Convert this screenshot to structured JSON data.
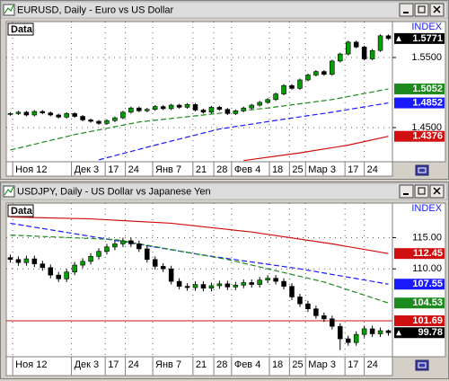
{
  "chart_data": [
    {
      "type": "candlestick",
      "title": "EURUSD, Daily - Euro vs US Dollar",
      "legend_label": "Data",
      "index_label": "INDEX",
      "xlim": [
        -0.5,
        47.5
      ],
      "ylim": [
        1.4013,
        1.6013
      ],
      "xticks": [
        {
          "value": 0.3,
          "label": "Ноя 12"
        },
        {
          "value": 7.6,
          "label": "Дек 3"
        },
        {
          "value": 11.8,
          "label": "17"
        },
        {
          "value": 14.3,
          "label": "24"
        },
        {
          "value": 17.7,
          "label": "Янв 7"
        },
        {
          "value": 22.7,
          "label": "21"
        },
        {
          "value": 25.3,
          "label": "28"
        },
        {
          "value": 27.5,
          "label": "Фев 4"
        },
        {
          "value": 32.2,
          "label": "18"
        },
        {
          "value": 34.7,
          "label": "25"
        },
        {
          "value": 36.7,
          "label": "Мар 3"
        },
        {
          "value": 41.6,
          "label": "17"
        },
        {
          "value": 44.0,
          "label": "24"
        }
      ],
      "yticks": [
        {
          "value": 1.55,
          "label": "1.5500"
        },
        {
          "value": 1.45,
          "label": "1.4500"
        }
      ],
      "up_color": "#00a000",
      "down_color": "#000000",
      "open": [
        1.469,
        1.47,
        1.472,
        1.468,
        1.473,
        1.471,
        1.468,
        1.465,
        1.47,
        1.466,
        1.461,
        1.459,
        1.456,
        1.46,
        1.464,
        1.472,
        1.478,
        1.474,
        1.476,
        1.48,
        1.477,
        1.482,
        1.479,
        1.483,
        1.475,
        1.472,
        1.479,
        1.476,
        1.47,
        1.474,
        1.478,
        1.482,
        1.486,
        1.49,
        1.498,
        1.51,
        1.506,
        1.518,
        1.525,
        1.53,
        1.526,
        1.545,
        1.555,
        1.572,
        1.565,
        1.548,
        1.56,
        1.581
      ],
      "high": [
        1.472,
        1.474,
        1.474,
        1.475,
        1.475,
        1.473,
        1.47,
        1.472,
        1.472,
        1.468,
        1.463,
        1.461,
        1.462,
        1.466,
        1.474,
        1.48,
        1.48,
        1.478,
        1.482,
        1.482,
        1.484,
        1.484,
        1.485,
        1.485,
        1.477,
        1.481,
        1.481,
        1.478,
        1.476,
        1.48,
        1.484,
        1.488,
        1.492,
        1.5,
        1.512,
        1.512,
        1.52,
        1.527,
        1.532,
        1.532,
        1.547,
        1.557,
        1.574,
        1.574,
        1.567,
        1.562,
        1.583,
        1.583
      ],
      "low": [
        1.467,
        1.468,
        1.466,
        1.466,
        1.469,
        1.466,
        1.463,
        1.463,
        1.464,
        1.459,
        1.457,
        1.454,
        1.454,
        1.458,
        1.462,
        1.47,
        1.472,
        1.472,
        1.474,
        1.475,
        1.475,
        1.477,
        1.477,
        1.473,
        1.47,
        1.47,
        1.474,
        1.468,
        1.468,
        1.472,
        1.476,
        1.48,
        1.484,
        1.488,
        1.496,
        1.504,
        1.504,
        1.516,
        1.523,
        1.524,
        1.524,
        1.543,
        1.553,
        1.563,
        1.546,
        1.546,
        1.558,
        1.5751
      ],
      "close": [
        1.47,
        1.472,
        1.468,
        1.473,
        1.471,
        1.468,
        1.465,
        1.47,
        1.466,
        1.461,
        1.459,
        1.456,
        1.46,
        1.464,
        1.472,
        1.478,
        1.474,
        1.476,
        1.48,
        1.477,
        1.482,
        1.479,
        1.483,
        1.475,
        1.472,
        1.479,
        1.476,
        1.47,
        1.474,
        1.478,
        1.482,
        1.486,
        1.49,
        1.498,
        1.51,
        1.506,
        1.518,
        1.525,
        1.53,
        1.526,
        1.545,
        1.555,
        1.572,
        1.565,
        1.548,
        1.56,
        1.581,
        1.5771
      ],
      "series": [
        {
          "color": "#1c8a1c",
          "dashed": true,
          "x": [
            0,
            8,
            16,
            24,
            32,
            40,
            47
          ],
          "values": [
            1.418,
            1.44,
            1.458,
            1.468,
            1.478,
            1.49,
            1.5052
          ]
        },
        {
          "color": "#1a1aff",
          "dashed": true,
          "x": [
            11,
            18,
            26,
            34,
            40,
            47
          ],
          "values": [
            1.404,
            1.425,
            1.448,
            1.462,
            1.472,
            1.4852
          ]
        },
        {
          "color": "#d01010",
          "dashed": false,
          "x": [
            29,
            36,
            42,
            47
          ],
          "values": [
            1.403,
            1.414,
            1.425,
            1.4376
          ]
        }
      ]
    },
    {
      "type": "candlestick",
      "title": "USDJPY, Daily - US Dollar vs Japanese Yen",
      "legend_label": "Data",
      "index_label": "INDEX",
      "xlim": [
        -0.5,
        47.5
      ],
      "ylim": [
        95.93,
        120.53
      ],
      "xticks": [
        {
          "value": 0.3,
          "label": "Ноя 12"
        },
        {
          "value": 7.6,
          "label": "Дек 3"
        },
        {
          "value": 11.8,
          "label": "17"
        },
        {
          "value": 14.3,
          "label": "24"
        },
        {
          "value": 17.7,
          "label": "Янв 7"
        },
        {
          "value": 22.7,
          "label": "21"
        },
        {
          "value": 25.3,
          "label": "28"
        },
        {
          "value": 27.5,
          "label": "Фев 4"
        },
        {
          "value": 32.2,
          "label": "18"
        },
        {
          "value": 34.7,
          "label": "25"
        },
        {
          "value": 36.7,
          "label": "Мар 3"
        },
        {
          "value": 41.6,
          "label": "17"
        },
        {
          "value": 44.0,
          "label": "24"
        }
      ],
      "yticks": [
        {
          "value": 115,
          "label": "115.00"
        },
        {
          "value": 110,
          "label": "110.00"
        }
      ],
      "up_color": "#00a000",
      "down_color": "#000000",
      "open": [
        111.8,
        111.5,
        111.0,
        111.6,
        110.8,
        110.2,
        109.0,
        108.4,
        109.5,
        110.6,
        111.2,
        112.0,
        112.8,
        113.5,
        114.0,
        114.5,
        114.0,
        113.2,
        111.5,
        110.4,
        110.0,
        108.0,
        107.2,
        107.0,
        107.5,
        106.9,
        107.3,
        107.6,
        107.1,
        107.4,
        107.8,
        107.5,
        108.2,
        108.5,
        108.0,
        107.2,
        105.5,
        104.4,
        103.6,
        102.5,
        102.0,
        100.8,
        98.8,
        98.2,
        99.5,
        100.4,
        99.6,
        100.1
      ],
      "high": [
        112.3,
        112.0,
        112.1,
        112.1,
        111.3,
        110.7,
        109.5,
        110.0,
        111.1,
        111.7,
        112.5,
        113.3,
        114.0,
        114.5,
        115.0,
        115.0,
        114.5,
        113.7,
        112.0,
        110.9,
        110.5,
        108.5,
        107.7,
        108.0,
        108.0,
        107.8,
        108.1,
        108.1,
        107.9,
        108.3,
        108.3,
        108.7,
        109.0,
        109.0,
        108.5,
        107.7,
        106.0,
        104.9,
        104.1,
        103.0,
        102.5,
        101.3,
        99.3,
        100.0,
        100.9,
        100.9,
        100.6,
        100.28
      ],
      "low": [
        111.0,
        110.5,
        110.5,
        110.3,
        109.7,
        108.5,
        107.9,
        107.9,
        109.0,
        110.1,
        110.7,
        111.5,
        112.3,
        113.0,
        113.5,
        113.5,
        112.7,
        111.0,
        109.9,
        109.5,
        107.5,
        106.7,
        106.5,
        106.5,
        106.4,
        106.4,
        106.8,
        106.6,
        106.6,
        106.9,
        107.0,
        107.0,
        107.7,
        107.5,
        106.7,
        105.0,
        103.9,
        103.1,
        102.0,
        101.5,
        100.3,
        97.0,
        97.7,
        97.7,
        99.0,
        99.1,
        99.1,
        99.28
      ],
      "close": [
        111.5,
        111.0,
        111.6,
        110.8,
        110.2,
        109.0,
        108.4,
        109.5,
        110.6,
        111.2,
        112.0,
        112.8,
        113.5,
        114.0,
        114.5,
        114.0,
        113.2,
        111.5,
        110.4,
        110.0,
        108.0,
        107.2,
        107.0,
        107.5,
        106.9,
        107.3,
        107.6,
        107.1,
        107.4,
        107.8,
        107.5,
        108.2,
        108.5,
        108.0,
        107.2,
        105.5,
        104.4,
        103.6,
        102.5,
        102.0,
        100.8,
        98.8,
        98.2,
        99.5,
        100.4,
        99.6,
        100.1,
        99.78
      ],
      "series": [
        {
          "color": "#d01010",
          "dashed": false,
          "x": [
            0,
            10,
            20,
            30,
            40,
            47
          ],
          "values": [
            118.3,
            118.0,
            117.3,
            115.9,
            114.0,
            112.45
          ]
        },
        {
          "color": "#1a1aff",
          "dashed": true,
          "x": [
            0,
            10,
            24,
            36,
            47
          ],
          "values": [
            117.3,
            115.2,
            112.2,
            110.0,
            107.55
          ]
        },
        {
          "color": "#1c8a1c",
          "dashed": true,
          "x": [
            0,
            13,
            27,
            39,
            47
          ],
          "values": [
            115.4,
            114.7,
            111.5,
            107.9,
            104.53
          ]
        }
      ],
      "hline": {
        "value": 101.69,
        "color": "#d01010"
      }
    }
  ]
}
